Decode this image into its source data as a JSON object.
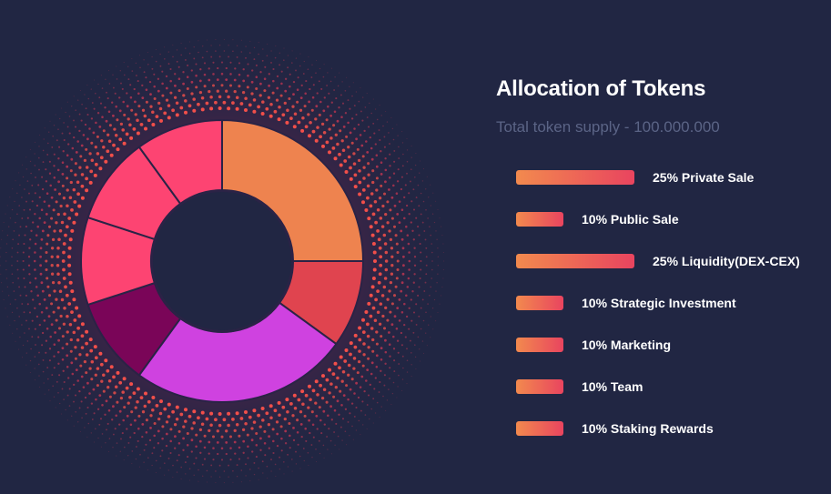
{
  "colors": {
    "background": "#212643",
    "bar_start": "#f28a4e",
    "bar_end": "#e9445f",
    "subtitle": "#5b6486",
    "segment_stroke": "#2a2346",
    "hole": "#212643"
  },
  "header": {
    "title": "Allocation of Tokens",
    "subtitle": "Total token supply - 100.000.000"
  },
  "chart_data": {
    "type": "pie",
    "donut": true,
    "title": "Allocation of Tokens",
    "categories": [
      "Private Sale",
      "Public Sale",
      "Liquidity(DEX-CEX)",
      "Strategic Investment",
      "Marketing",
      "Team",
      "Staking Rewards"
    ],
    "values": [
      25,
      10,
      25,
      10,
      10,
      10,
      10
    ],
    "unit": "%",
    "slice_colors": [
      "#ee834f",
      "#e0444f",
      "#cf42e0",
      "#7a0558",
      "#fd4472",
      "#fd4472",
      "#fd4472"
    ]
  },
  "legend": [
    {
      "label": "25% Private Sale",
      "percent": 25
    },
    {
      "label": "10% Public Sale",
      "percent": 10
    },
    {
      "label": "25% Liquidity(DEX-CEX)",
      "percent": 25
    },
    {
      "label": "10% Strategic Investment",
      "percent": 10
    },
    {
      "label": "10% Marketing",
      "percent": 10
    },
    {
      "label": "10% Team",
      "percent": 10
    },
    {
      "label": "10% Staking Rewards",
      "percent": 10
    }
  ]
}
